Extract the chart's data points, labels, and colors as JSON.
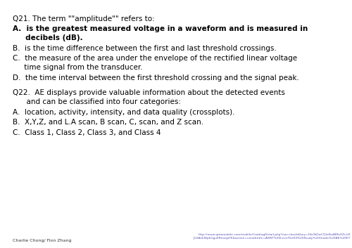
{
  "background_color": "#ffffff",
  "text_color": "#000000",
  "footer_left": "Charlie Chong/ Fion Zhang",
  "footer_right_line1": "http://www.qatomobile.com/mobile/CatalogDetail.php?nav=book&key=f4oToDwCQleKodBRoXZvUX",
  "footer_right_line2": "JO2AnkWpkGgvERmzqsFE&action=view&title=ASNT%20Level%20II%20Study%20Guide%20AE%20ET",
  "q21_text": "Q21. The term \"\"amplitude\"\" refers to:",
  "q21_A1": "A.  is the greatest measured voltage in a waveform and is measured in",
  "q21_A2": "     decibels (dB).",
  "q21_B": "B.  is the time difference between the first and last threshold crossings.",
  "q21_C1": "C.  the measure of the area under the envelope of the rectified linear voltage",
  "q21_C2": "     time signal from the transducer.",
  "q21_D": "D.  the time interval between the first threshold crossing and the signal peak.",
  "q22_text1": "Q22.  AE displays provide valuable information about the detected events",
  "q22_text2": "      and can be classified into four categories:",
  "q22_A": "A.  location, activity, intensity, and data quality (crossplots).",
  "q22_B": "B.  X,Y,Z, and L.A scan, B scan, C, scan, and Z scan.",
  "q22_C": "C.  Class 1, Class 2, Class 3, and Class 4",
  "font_size_main": 7.5,
  "font_size_footer": 4.5,
  "font_size_url": 3.2
}
